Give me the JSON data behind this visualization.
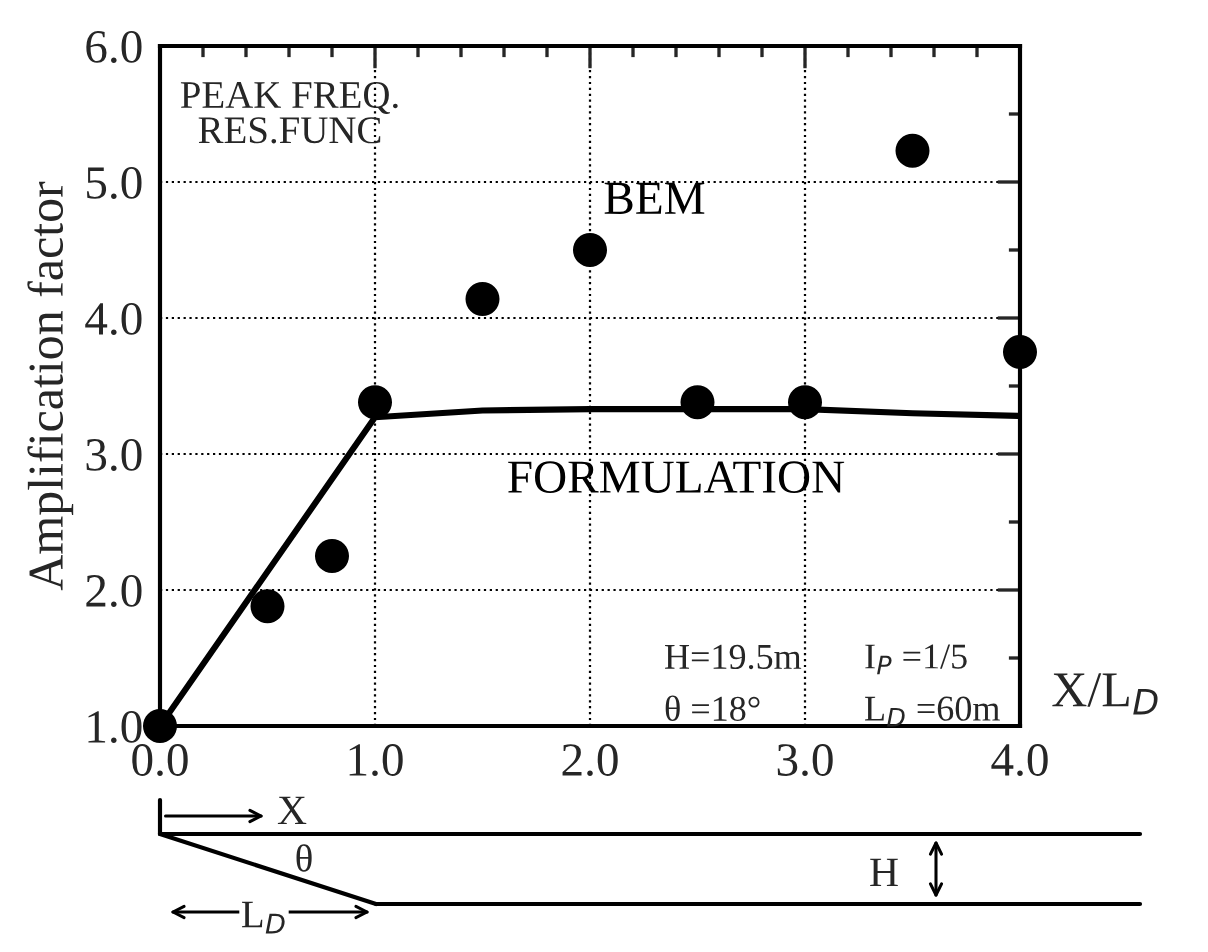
{
  "chart_data": {
    "type": "scatter",
    "xlabel": "X/L$_{D}$",
    "ylabel": "Amplification factor",
    "series": [
      {
        "name": "BEM",
        "color": "#000000",
        "marker": "circle",
        "x": [
          0.0,
          0.5,
          0.8,
          1.0,
          1.5,
          2.0,
          2.5,
          3.0,
          3.5,
          4.0
        ],
        "values": [
          1.0,
          1.88,
          2.25,
          3.38,
          4.14,
          4.5,
          3.38,
          3.38,
          5.23,
          3.75
        ]
      },
      {
        "name": "FORMULATION",
        "type": "line",
        "color": "#000000",
        "marker": "none",
        "line_style": "solid",
        "x": [
          0.0,
          1.0,
          1.5,
          2.0,
          3.0,
          3.5,
          4.0
        ],
        "values": [
          1.0,
          3.27,
          3.32,
          3.33,
          3.33,
          3.3,
          3.28
        ]
      }
    ],
    "xlim": [
      0,
      4
    ],
    "ylim": [
      1,
      6
    ],
    "xticks": [
      {
        "value": 0,
        "label": "0.0"
      },
      {
        "value": 1,
        "label": "1.0"
      },
      {
        "value": 2,
        "label": "2.0"
      },
      {
        "value": 3,
        "label": "3.0"
      },
      {
        "value": 4,
        "label": "4.0"
      }
    ],
    "yticks": [
      {
        "value": 1,
        "label": "1.0"
      },
      {
        "value": 2,
        "label": "2.0"
      },
      {
        "value": 3,
        "label": "3.0"
      },
      {
        "value": 4,
        "label": "4.0"
      },
      {
        "value": 5,
        "label": "5.0"
      },
      {
        "value": 6,
        "label": "6.0"
      }
    ],
    "grid": true,
    "legend": false,
    "annotations": [
      "PEAK FREQ.\nRES.FUNC",
      "H=19.5m",
      "I$_{P}$ =1/5",
      "θ =18°",
      "L$_{D}$ =60m",
      "X",
      "θ",
      "H",
      "L$_{D}$"
    ]
  }
}
